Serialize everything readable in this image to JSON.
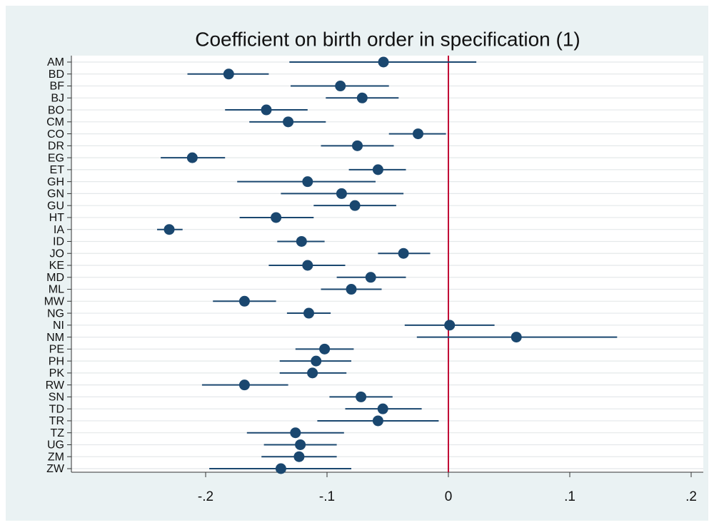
{
  "chart_data": {
    "type": "coefplot",
    "title": "Coefficient on birth order in specification (1)",
    "categories": [
      "AM",
      "BD",
      "BF",
      "BJ",
      "BO",
      "CM",
      "CO",
      "DR",
      "EG",
      "ET",
      "GH",
      "GN",
      "GU",
      "HT",
      "IA",
      "ID",
      "JO",
      "KE",
      "MD",
      "ML",
      "MW",
      "NG",
      "NI",
      "NM",
      "PE",
      "PH",
      "PK",
      "RW",
      "SN",
      "TD",
      "TR",
      "TZ",
      "UG",
      "ZM",
      "ZW"
    ],
    "values": [
      -0.0535,
      -0.181,
      -0.089,
      -0.071,
      -0.15,
      -0.132,
      -0.025,
      -0.075,
      -0.211,
      -0.058,
      -0.116,
      -0.088,
      -0.077,
      -0.142,
      -0.23,
      -0.121,
      -0.037,
      -0.116,
      -0.064,
      -0.08,
      -0.168,
      -0.115,
      0.001,
      0.056,
      -0.102,
      -0.109,
      -0.112,
      -0.168,
      -0.072,
      -0.054,
      -0.058,
      -0.126,
      -0.122,
      -0.123,
      -0.138
    ],
    "lower": [
      -0.131,
      -0.215,
      -0.13,
      -0.101,
      -0.184,
      -0.164,
      -0.049,
      -0.105,
      -0.237,
      -0.082,
      -0.174,
      -0.138,
      -0.111,
      -0.172,
      -0.24,
      -0.141,
      -0.058,
      -0.148,
      -0.092,
      -0.105,
      -0.194,
      -0.133,
      -0.036,
      -0.026,
      -0.126,
      -0.139,
      -0.139,
      -0.203,
      -0.098,
      -0.085,
      -0.108,
      -0.166,
      -0.152,
      -0.154,
      -0.197
    ],
    "upper": [
      0.023,
      -0.148,
      -0.049,
      -0.041,
      -0.116,
      -0.101,
      -0.002,
      -0.045,
      -0.184,
      -0.035,
      -0.06,
      -0.037,
      -0.043,
      -0.111,
      -0.219,
      -0.102,
      -0.015,
      -0.085,
      -0.035,
      -0.055,
      -0.142,
      -0.097,
      0.038,
      0.139,
      -0.078,
      -0.08,
      -0.084,
      -0.132,
      -0.046,
      -0.022,
      -0.008,
      -0.086,
      -0.092,
      -0.092,
      -0.08
    ],
    "color": "#1a476f",
    "xlim": [
      -0.3106,
      0.21
    ],
    "xticks": [
      {
        "value": -0.2,
        "label": "-.2"
      },
      {
        "value": -0.1,
        "label": "-.1"
      },
      0,
      {
        "value": 0.1,
        "label": ".1"
      },
      {
        "value": 0.2,
        "label": ".2"
      }
    ],
    "reference_line": 0,
    "reference_color": "#c10534",
    "grid": true
  }
}
